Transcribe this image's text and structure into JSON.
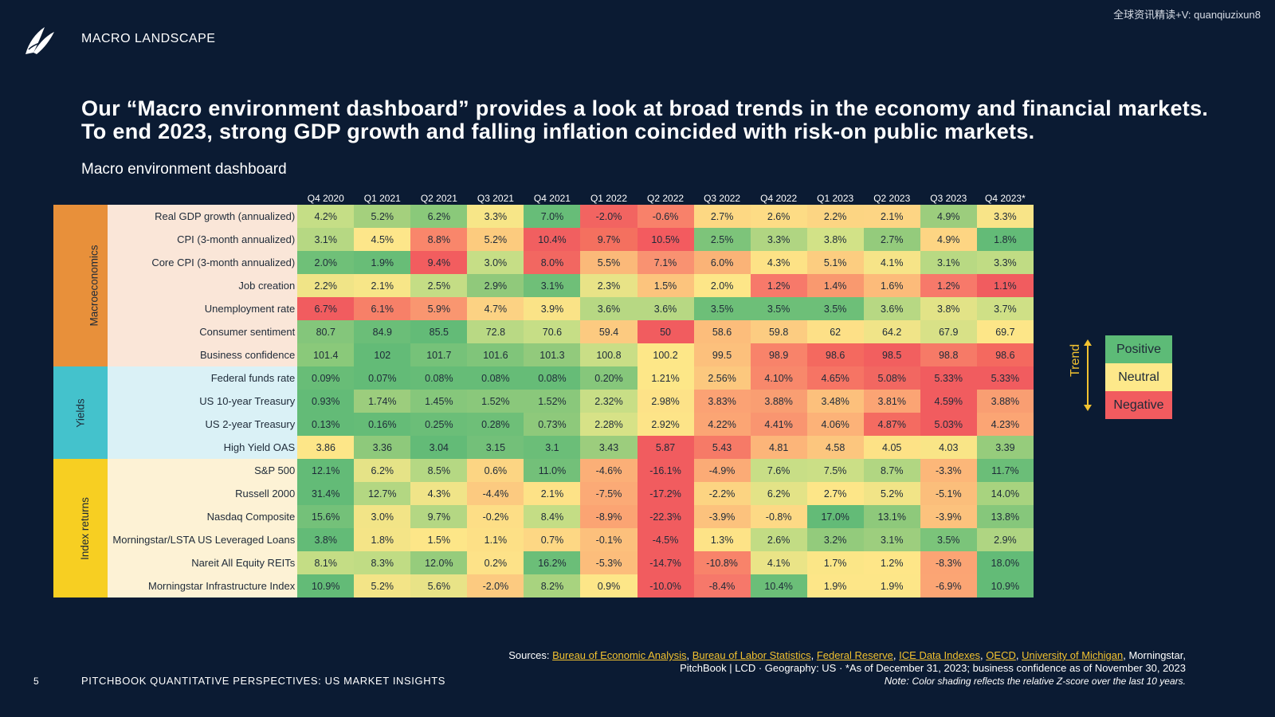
{
  "watermark": "全球资讯精读+V: quanqiuzixun8",
  "header": {
    "section": "MACRO LANDSCAPE"
  },
  "headline": "Our “Macro environment dashboard” provides a look at broad trends in the economy and financial markets. To end 2023, strong GDP growth and falling inflation coincided with risk-on public markets.",
  "dashboard_title": "Macro environment dashboard",
  "columns": [
    "Q4 2020",
    "Q1 2021",
    "Q2 2021",
    "Q3 2021",
    "Q4 2021",
    "Q1 2022",
    "Q2 2022",
    "Q3 2022",
    "Q4 2022",
    "Q1 2023",
    "Q2 2023",
    "Q3 2023",
    "Q4 2023*"
  ],
  "colors": {
    "background": "#0b1b33",
    "accent": "#f2c230",
    "positive": "#5dbb77",
    "neutral": "#fde88a",
    "negative": "#f15b5f"
  },
  "categories": [
    {
      "name": "Macroeconomics",
      "color": "#e8903a",
      "label_bg": "#fae6d8",
      "rows": [
        {
          "label": "Real GDP growth (annualized)",
          "values": [
            "4.2%",
            "5.2%",
            "6.2%",
            "3.3%",
            "7.0%",
            "-2.0%",
            "-0.6%",
            "2.7%",
            "2.6%",
            "2.2%",
            "2.1%",
            "4.9%",
            "3.3%"
          ],
          "shades": [
            "#c5de86",
            "#a4d07d",
            "#8ac97a",
            "#f7e688",
            "#67bd78",
            "#f26461",
            "#f8816a",
            "#fdd883",
            "#fddc85",
            "#fcd583",
            "#fdd584",
            "#9ccd7d",
            "#f8e488"
          ]
        },
        {
          "label": "CPI (3-month annualized)",
          "values": [
            "3.1%",
            "4.5%",
            "8.8%",
            "5.2%",
            "10.4%",
            "9.7%",
            "10.5%",
            "2.5%",
            "3.3%",
            "3.8%",
            "2.7%",
            "4.9%",
            "1.8%"
          ],
          "shades": [
            "#b6d883",
            "#fde68a",
            "#f9866b",
            "#fccb7e",
            "#f15f60",
            "#f4705f",
            "#f35b5f",
            "#7dc47a",
            "#b0d582",
            "#d2e287",
            "#94cb7c",
            "#fdd583",
            "#63bb77"
          ]
        },
        {
          "label": "Core CPI (3-month annualized)",
          "values": [
            "2.0%",
            "1.9%",
            "9.4%",
            "3.0%",
            "8.0%",
            "5.5%",
            "7.1%",
            "6.0%",
            "4.3%",
            "5.1%",
            "4.1%",
            "3.1%",
            "3.3%"
          ],
          "shades": [
            "#6fc078",
            "#68bd77",
            "#f25d5f",
            "#c6de86",
            "#f26761",
            "#fbb979",
            "#f99271",
            "#fab377",
            "#fde286",
            "#fccd80",
            "#f6e488",
            "#b8d983",
            "#c0dc84"
          ]
        },
        {
          "label": "Job creation",
          "values": [
            "2.2%",
            "2.1%",
            "2.5%",
            "2.9%",
            "3.1%",
            "2.3%",
            "1.5%",
            "2.0%",
            "1.2%",
            "1.4%",
            "1.6%",
            "1.2%",
            "1.1%"
          ],
          "shades": [
            "#f0e487",
            "#f7e688",
            "#c4dd85",
            "#90c97b",
            "#6fbf78",
            "#e8e387",
            "#fcc47d",
            "#fde688",
            "#f7796a",
            "#f9996f",
            "#fcbb7a",
            "#f7796a",
            "#f15c5f"
          ]
        },
        {
          "label": "Unemployment rate",
          "values": [
            "6.7%",
            "6.1%",
            "5.9%",
            "4.7%",
            "3.9%",
            "3.6%",
            "3.6%",
            "3.5%",
            "3.5%",
            "3.5%",
            "3.6%",
            "3.8%",
            "3.7%"
          ],
          "shades": [
            "#f15c5f",
            "#f78068",
            "#f99670",
            "#fcd283",
            "#fae387",
            "#b7d883",
            "#b7d883",
            "#6dbf78",
            "#6dbf78",
            "#6dbf78",
            "#b7d883",
            "#e2e387",
            "#cfe086"
          ]
        },
        {
          "label": "Consumer sentiment",
          "values": [
            "80.7",
            "84.9",
            "85.5",
            "72.8",
            "70.6",
            "59.4",
            "50",
            "58.6",
            "59.8",
            "62",
            "64.2",
            "67.9",
            "69.7"
          ],
          "shades": [
            "#84c67b",
            "#6bbe78",
            "#63bb77",
            "#b9d984",
            "#c6de86",
            "#fcca80",
            "#f15c5f",
            "#fcbd7b",
            "#fccc81",
            "#fde087",
            "#f0e488",
            "#d8e187",
            "#fde688"
          ]
        },
        {
          "label": "Business confidence",
          "values": [
            "101.4",
            "102",
            "101.7",
            "101.6",
            "101.3",
            "100.8",
            "100.2",
            "99.5",
            "98.9",
            "98.6",
            "98.5",
            "98.8",
            "98.6"
          ],
          "shades": [
            "#8ac97a",
            "#63bb77",
            "#76c279",
            "#80c57a",
            "#92ca7c",
            "#c9de86",
            "#fde788",
            "#fcc07c",
            "#f8836a",
            "#f4695f",
            "#f25f5f",
            "#f67a67",
            "#f4695f"
          ]
        }
      ]
    },
    {
      "name": "Yields",
      "color": "#44c2cc",
      "label_bg": "#daf1f6",
      "rows": [
        {
          "label": "Federal funds rate",
          "values": [
            "0.09%",
            "0.07%",
            "0.08%",
            "0.08%",
            "0.08%",
            "0.20%",
            "1.21%",
            "2.56%",
            "4.10%",
            "4.65%",
            "5.08%",
            "5.33%",
            "5.33%"
          ],
          "shades": [
            "#68bd77",
            "#63bb77",
            "#66bc77",
            "#66bc77",
            "#66bc77",
            "#86c77b",
            "#fde788",
            "#fcc87e",
            "#f8886b",
            "#f67464",
            "#f26761",
            "#f15c5f",
            "#f15c5f"
          ]
        },
        {
          "label": "US 10-year Treasury",
          "values": [
            "0.93%",
            "1.74%",
            "1.45%",
            "1.52%",
            "1.52%",
            "2.32%",
            "2.98%",
            "3.83%",
            "3.88%",
            "3.48%",
            "3.81%",
            "4.59%",
            "3.88%"
          ],
          "shades": [
            "#63bb77",
            "#9ccd7d",
            "#86c77b",
            "#8ac87b",
            "#8ac87b",
            "#c8de86",
            "#fde288",
            "#fba274",
            "#f99e72",
            "#fcc07c",
            "#fba474",
            "#f15c5f",
            "#f99e72"
          ]
        },
        {
          "label": "US 2-year Treasury",
          "values": [
            "0.13%",
            "0.16%",
            "0.25%",
            "0.28%",
            "0.73%",
            "2.28%",
            "2.92%",
            "4.22%",
            "4.41%",
            "4.06%",
            "4.87%",
            "5.03%",
            "4.23%"
          ],
          "shades": [
            "#63bb77",
            "#65bc77",
            "#6bbe78",
            "#6ebf78",
            "#8ec97b",
            "#d7e287",
            "#fde488",
            "#fba574",
            "#f99570",
            "#fcb278",
            "#f46b61",
            "#f15c5f",
            "#fba574"
          ]
        },
        {
          "label": "High Yield OAS",
          "values": [
            "3.86",
            "3.36",
            "3.04",
            "3.15",
            "3.1",
            "3.43",
            "5.87",
            "5.43",
            "4.81",
            "4.58",
            "4.05",
            "4.03",
            "3.39"
          ],
          "shades": [
            "#fde688",
            "#8ec97b",
            "#63bb77",
            "#73c079",
            "#6bbe78",
            "#9ccd7d",
            "#f15c5f",
            "#f67a67",
            "#fcb579",
            "#fcc67e",
            "#fde286",
            "#f9e587",
            "#96cc7c"
          ]
        }
      ]
    },
    {
      "name": "Index returns",
      "color": "#f7cf22",
      "label_bg": "#fdf2d5",
      "rows": [
        {
          "label": "S&P 500",
          "values": [
            "12.1%",
            "6.2%",
            "8.5%",
            "0.6%",
            "11.0%",
            "-4.6%",
            "-16.1%",
            "-4.9%",
            "7.6%",
            "7.5%",
            "8.7%",
            "-3.3%",
            "11.7%"
          ],
          "shades": [
            "#63bb77",
            "#e5e387",
            "#b5d883",
            "#fcd583",
            "#73c079",
            "#fbaf77",
            "#f15c5f",
            "#fbab76",
            "#c8de86",
            "#cbdf86",
            "#b1d682",
            "#fcb779",
            "#6bbe78"
          ]
        },
        {
          "label": "Russell 2000",
          "values": [
            "31.4%",
            "12.7%",
            "4.3%",
            "-4.4%",
            "2.1%",
            "-7.5%",
            "-17.2%",
            "-2.2%",
            "6.2%",
            "2.7%",
            "5.2%",
            "-5.1%",
            "14.0%"
          ],
          "shades": [
            "#63bb77",
            "#b3d782",
            "#f0e488",
            "#fcca80",
            "#fde287",
            "#fbaa76",
            "#f15c5f",
            "#fcd482",
            "#e3e387",
            "#fde688",
            "#f1e487",
            "#fbbe7b",
            "#a8d37f"
          ]
        },
        {
          "label": "Nasdaq Composite",
          "values": [
            "15.6%",
            "3.0%",
            "9.7%",
            "-0.2%",
            "8.4%",
            "-8.9%",
            "-22.3%",
            "-3.9%",
            "-0.8%",
            "17.0%",
            "13.1%",
            "-3.9%",
            "13.8%"
          ],
          "shades": [
            "#74c179",
            "#f2e487",
            "#b4d783",
            "#fdde86",
            "#c4dd85",
            "#fba473",
            "#f15c5f",
            "#fcc27d",
            "#fdd985",
            "#63bb77",
            "#8ec97b",
            "#fcc27d",
            "#86c77b"
          ]
        },
        {
          "label": "Morningstar/LSTA US Leveraged Loans",
          "values": [
            "3.8%",
            "1.8%",
            "1.5%",
            "1.1%",
            "0.7%",
            "-0.1%",
            "-4.5%",
            "1.3%",
            "2.6%",
            "3.2%",
            "3.1%",
            "3.5%",
            "2.9%"
          ],
          "shades": [
            "#63bb77",
            "#f4e487",
            "#fde688",
            "#fde086",
            "#fdd784",
            "#fcc07c",
            "#f15c5f",
            "#fde387",
            "#c2dc84",
            "#93cb7c",
            "#9dce7e",
            "#7bc47a",
            "#afd582"
          ]
        },
        {
          "label": "Nareit All Equity REITs",
          "values": [
            "8.1%",
            "8.3%",
            "12.0%",
            "0.2%",
            "16.2%",
            "-5.3%",
            "-14.7%",
            "-10.8%",
            "4.1%",
            "1.7%",
            "1.2%",
            "-8.3%",
            "18.0%"
          ],
          "shades": [
            "#c4dd85",
            "#c0dc84",
            "#96cc7c",
            "#fde288",
            "#6bbe78",
            "#fcbd7b",
            "#f15c5f",
            "#f8836a",
            "#eae487",
            "#fbe687",
            "#fee688",
            "#fba474",
            "#63bb77"
          ]
        },
        {
          "label": "Morningstar Infrastructure Index",
          "values": [
            "10.9%",
            "5.2%",
            "5.6%",
            "-2.0%",
            "8.2%",
            "0.9%",
            "-10.0%",
            "-8.4%",
            "10.4%",
            "1.9%",
            "1.9%",
            "-6.9%",
            "10.9%"
          ],
          "shades": [
            "#63bb77",
            "#f3e487",
            "#e8e387",
            "#fcca80",
            "#a8d37f",
            "#fde688",
            "#f15c5f",
            "#f6786a",
            "#6bbe78",
            "#fde688",
            "#fde688",
            "#fba574",
            "#63bb77"
          ]
        }
      ]
    }
  ],
  "legend": {
    "trend": "Trend",
    "positive": "Positive",
    "neutral": "Neutral",
    "negative": "Negative"
  },
  "footer": {
    "sources_prefix": "Sources: ",
    "source_links": [
      "Bureau of Economic Analysis",
      "Bureau of Labor Statistics",
      "Federal Reserve",
      "ICE Data Indexes",
      "OECD",
      "University of Michigan"
    ],
    "sources_suffix": ", Morningstar,",
    "line2": "PitchBook | LCD · Geography: US  ·  *As of December 31, 2023; business confidence as of November 30, 2023",
    "note_label": "Note:",
    "note_text": "Color shading reflects the relative Z-score over the last 10 years.",
    "page_number": "5",
    "publication": "PITCHBOOK QUANTITATIVE PERSPECTIVES: US MARKET INSIGHTS"
  }
}
